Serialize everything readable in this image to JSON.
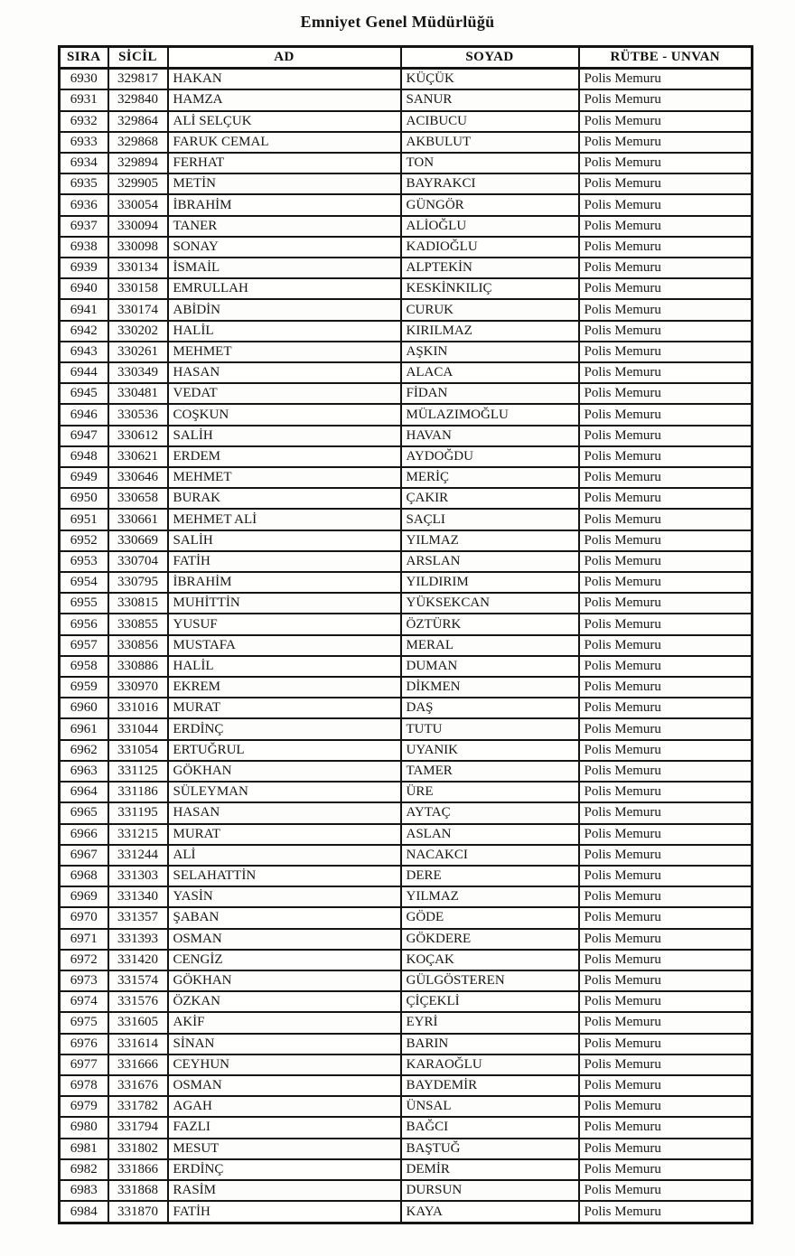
{
  "page": {
    "title": "Emniyet Genel Müdürlüğü"
  },
  "table": {
    "columns": [
      "SIRA",
      "SİCİL",
      "AD",
      "SOYAD",
      "RÜTBE - UNVAN"
    ],
    "rows": [
      [
        "6930",
        "329817",
        "HAKAN",
        "KÜÇÜK",
        "Polis Memuru"
      ],
      [
        "6931",
        "329840",
        "HAMZA",
        "SANUR",
        "Polis Memuru"
      ],
      [
        "6932",
        "329864",
        "ALİ SELÇUK",
        "ACIBUCU",
        "Polis Memuru"
      ],
      [
        "6933",
        "329868",
        "FARUK CEMAL",
        "AKBULUT",
        "Polis Memuru"
      ],
      [
        "6934",
        "329894",
        "FERHAT",
        "TON",
        "Polis Memuru"
      ],
      [
        "6935",
        "329905",
        "METİN",
        "BAYRAKCI",
        "Polis Memuru"
      ],
      [
        "6936",
        "330054",
        "İBRAHİM",
        "GÜNGÖR",
        "Polis Memuru"
      ],
      [
        "6937",
        "330094",
        "TANER",
        "ALİOĞLU",
        "Polis Memuru"
      ],
      [
        "6938",
        "330098",
        "SONAY",
        "KADIOĞLU",
        "Polis Memuru"
      ],
      [
        "6939",
        "330134",
        "İSMAİL",
        "ALPTEKİN",
        "Polis Memuru"
      ],
      [
        "6940",
        "330158",
        "EMRULLAH",
        "KESKİNKILIÇ",
        "Polis Memuru"
      ],
      [
        "6941",
        "330174",
        "ABİDİN",
        "CURUK",
        "Polis Memuru"
      ],
      [
        "6942",
        "330202",
        "HALİL",
        "KIRILMAZ",
        "Polis Memuru"
      ],
      [
        "6943",
        "330261",
        "MEHMET",
        "AŞKIN",
        "Polis Memuru"
      ],
      [
        "6944",
        "330349",
        "HASAN",
        "ALACA",
        "Polis Memuru"
      ],
      [
        "6945",
        "330481",
        "VEDAT",
        "FİDAN",
        "Polis Memuru"
      ],
      [
        "6946",
        "330536",
        "COŞKUN",
        "MÜLAZIMOĞLU",
        "Polis Memuru"
      ],
      [
        "6947",
        "330612",
        "SALİH",
        "HAVAN",
        "Polis Memuru"
      ],
      [
        "6948",
        "330621",
        "ERDEM",
        "AYDOĞDU",
        "Polis Memuru"
      ],
      [
        "6949",
        "330646",
        "MEHMET",
        "MERİÇ",
        "Polis Memuru"
      ],
      [
        "6950",
        "330658",
        "BURAK",
        "ÇAKIR",
        "Polis Memuru"
      ],
      [
        "6951",
        "330661",
        "MEHMET ALİ",
        "SAÇLI",
        "Polis Memuru"
      ],
      [
        "6952",
        "330669",
        "SALİH",
        "YILMAZ",
        "Polis Memuru"
      ],
      [
        "6953",
        "330704",
        "FATİH",
        "ARSLAN",
        "Polis Memuru"
      ],
      [
        "6954",
        "330795",
        "İBRAHİM",
        "YILDIRIM",
        "Polis Memuru"
      ],
      [
        "6955",
        "330815",
        "MUHİTTİN",
        "YÜKSEKCAN",
        "Polis Memuru"
      ],
      [
        "6956",
        "330855",
        "YUSUF",
        "ÖZTÜRK",
        "Polis Memuru"
      ],
      [
        "6957",
        "330856",
        "MUSTAFA",
        "MERAL",
        "Polis Memuru"
      ],
      [
        "6958",
        "330886",
        "HALİL",
        "DUMAN",
        "Polis Memuru"
      ],
      [
        "6959",
        "330970",
        "EKREM",
        "DİKMEN",
        "Polis Memuru"
      ],
      [
        "6960",
        "331016",
        "MURAT",
        "DAŞ",
        "Polis Memuru"
      ],
      [
        "6961",
        "331044",
        "ERDİNÇ",
        "TUTU",
        "Polis Memuru"
      ],
      [
        "6962",
        "331054",
        "ERTUĞRUL",
        "UYANIK",
        "Polis Memuru"
      ],
      [
        "6963",
        "331125",
        "GÖKHAN",
        "TAMER",
        "Polis Memuru"
      ],
      [
        "6964",
        "331186",
        "SÜLEYMAN",
        "ÜRE",
        "Polis Memuru"
      ],
      [
        "6965",
        "331195",
        "HASAN",
        "AYTAÇ",
        "Polis Memuru"
      ],
      [
        "6966",
        "331215",
        "MURAT",
        "ASLAN",
        "Polis Memuru"
      ],
      [
        "6967",
        "331244",
        "ALİ",
        "NACAKCI",
        "Polis Memuru"
      ],
      [
        "6968",
        "331303",
        "SELAHATTİN",
        "DERE",
        "Polis Memuru"
      ],
      [
        "6969",
        "331340",
        "YASİN",
        "YILMAZ",
        "Polis Memuru"
      ],
      [
        "6970",
        "331357",
        "ŞABAN",
        "GÖDE",
        "Polis Memuru"
      ],
      [
        "6971",
        "331393",
        "OSMAN",
        "GÖKDERE",
        "Polis Memuru"
      ],
      [
        "6972",
        "331420",
        "CENGİZ",
        "KOÇAK",
        "Polis Memuru"
      ],
      [
        "6973",
        "331574",
        "GÖKHAN",
        "GÜLGÖSTEREN",
        "Polis Memuru"
      ],
      [
        "6974",
        "331576",
        "ÖZKAN",
        "ÇİÇEKLİ",
        "Polis Memuru"
      ],
      [
        "6975",
        "331605",
        "AKİF",
        "EYRİ",
        "Polis Memuru"
      ],
      [
        "6976",
        "331614",
        "SİNAN",
        "BARIN",
        "Polis Memuru"
      ],
      [
        "6977",
        "331666",
        "CEYHUN",
        "KARAOĞLU",
        "Polis Memuru"
      ],
      [
        "6978",
        "331676",
        "OSMAN",
        "BAYDEMİR",
        "Polis Memuru"
      ],
      [
        "6979",
        "331782",
        "AGAH",
        "ÜNSAL",
        "Polis Memuru"
      ],
      [
        "6980",
        "331794",
        "FAZLI",
        "BAĞCI",
        "Polis Memuru"
      ],
      [
        "6981",
        "331802",
        "MESUT",
        "BAŞTUĞ",
        "Polis Memuru"
      ],
      [
        "6982",
        "331866",
        "ERDİNÇ",
        "DEMİR",
        "Polis Memuru"
      ],
      [
        "6983",
        "331868",
        "RASİM",
        "DURSUN",
        "Polis Memuru"
      ],
      [
        "6984",
        "331870",
        "FATİH",
        "KAYA",
        "Polis Memuru"
      ]
    ],
    "cell_names": [
      "cell-sira",
      "cell-sicil",
      "cell-ad",
      "cell-soyad",
      "cell-rutbe-unvan"
    ]
  }
}
